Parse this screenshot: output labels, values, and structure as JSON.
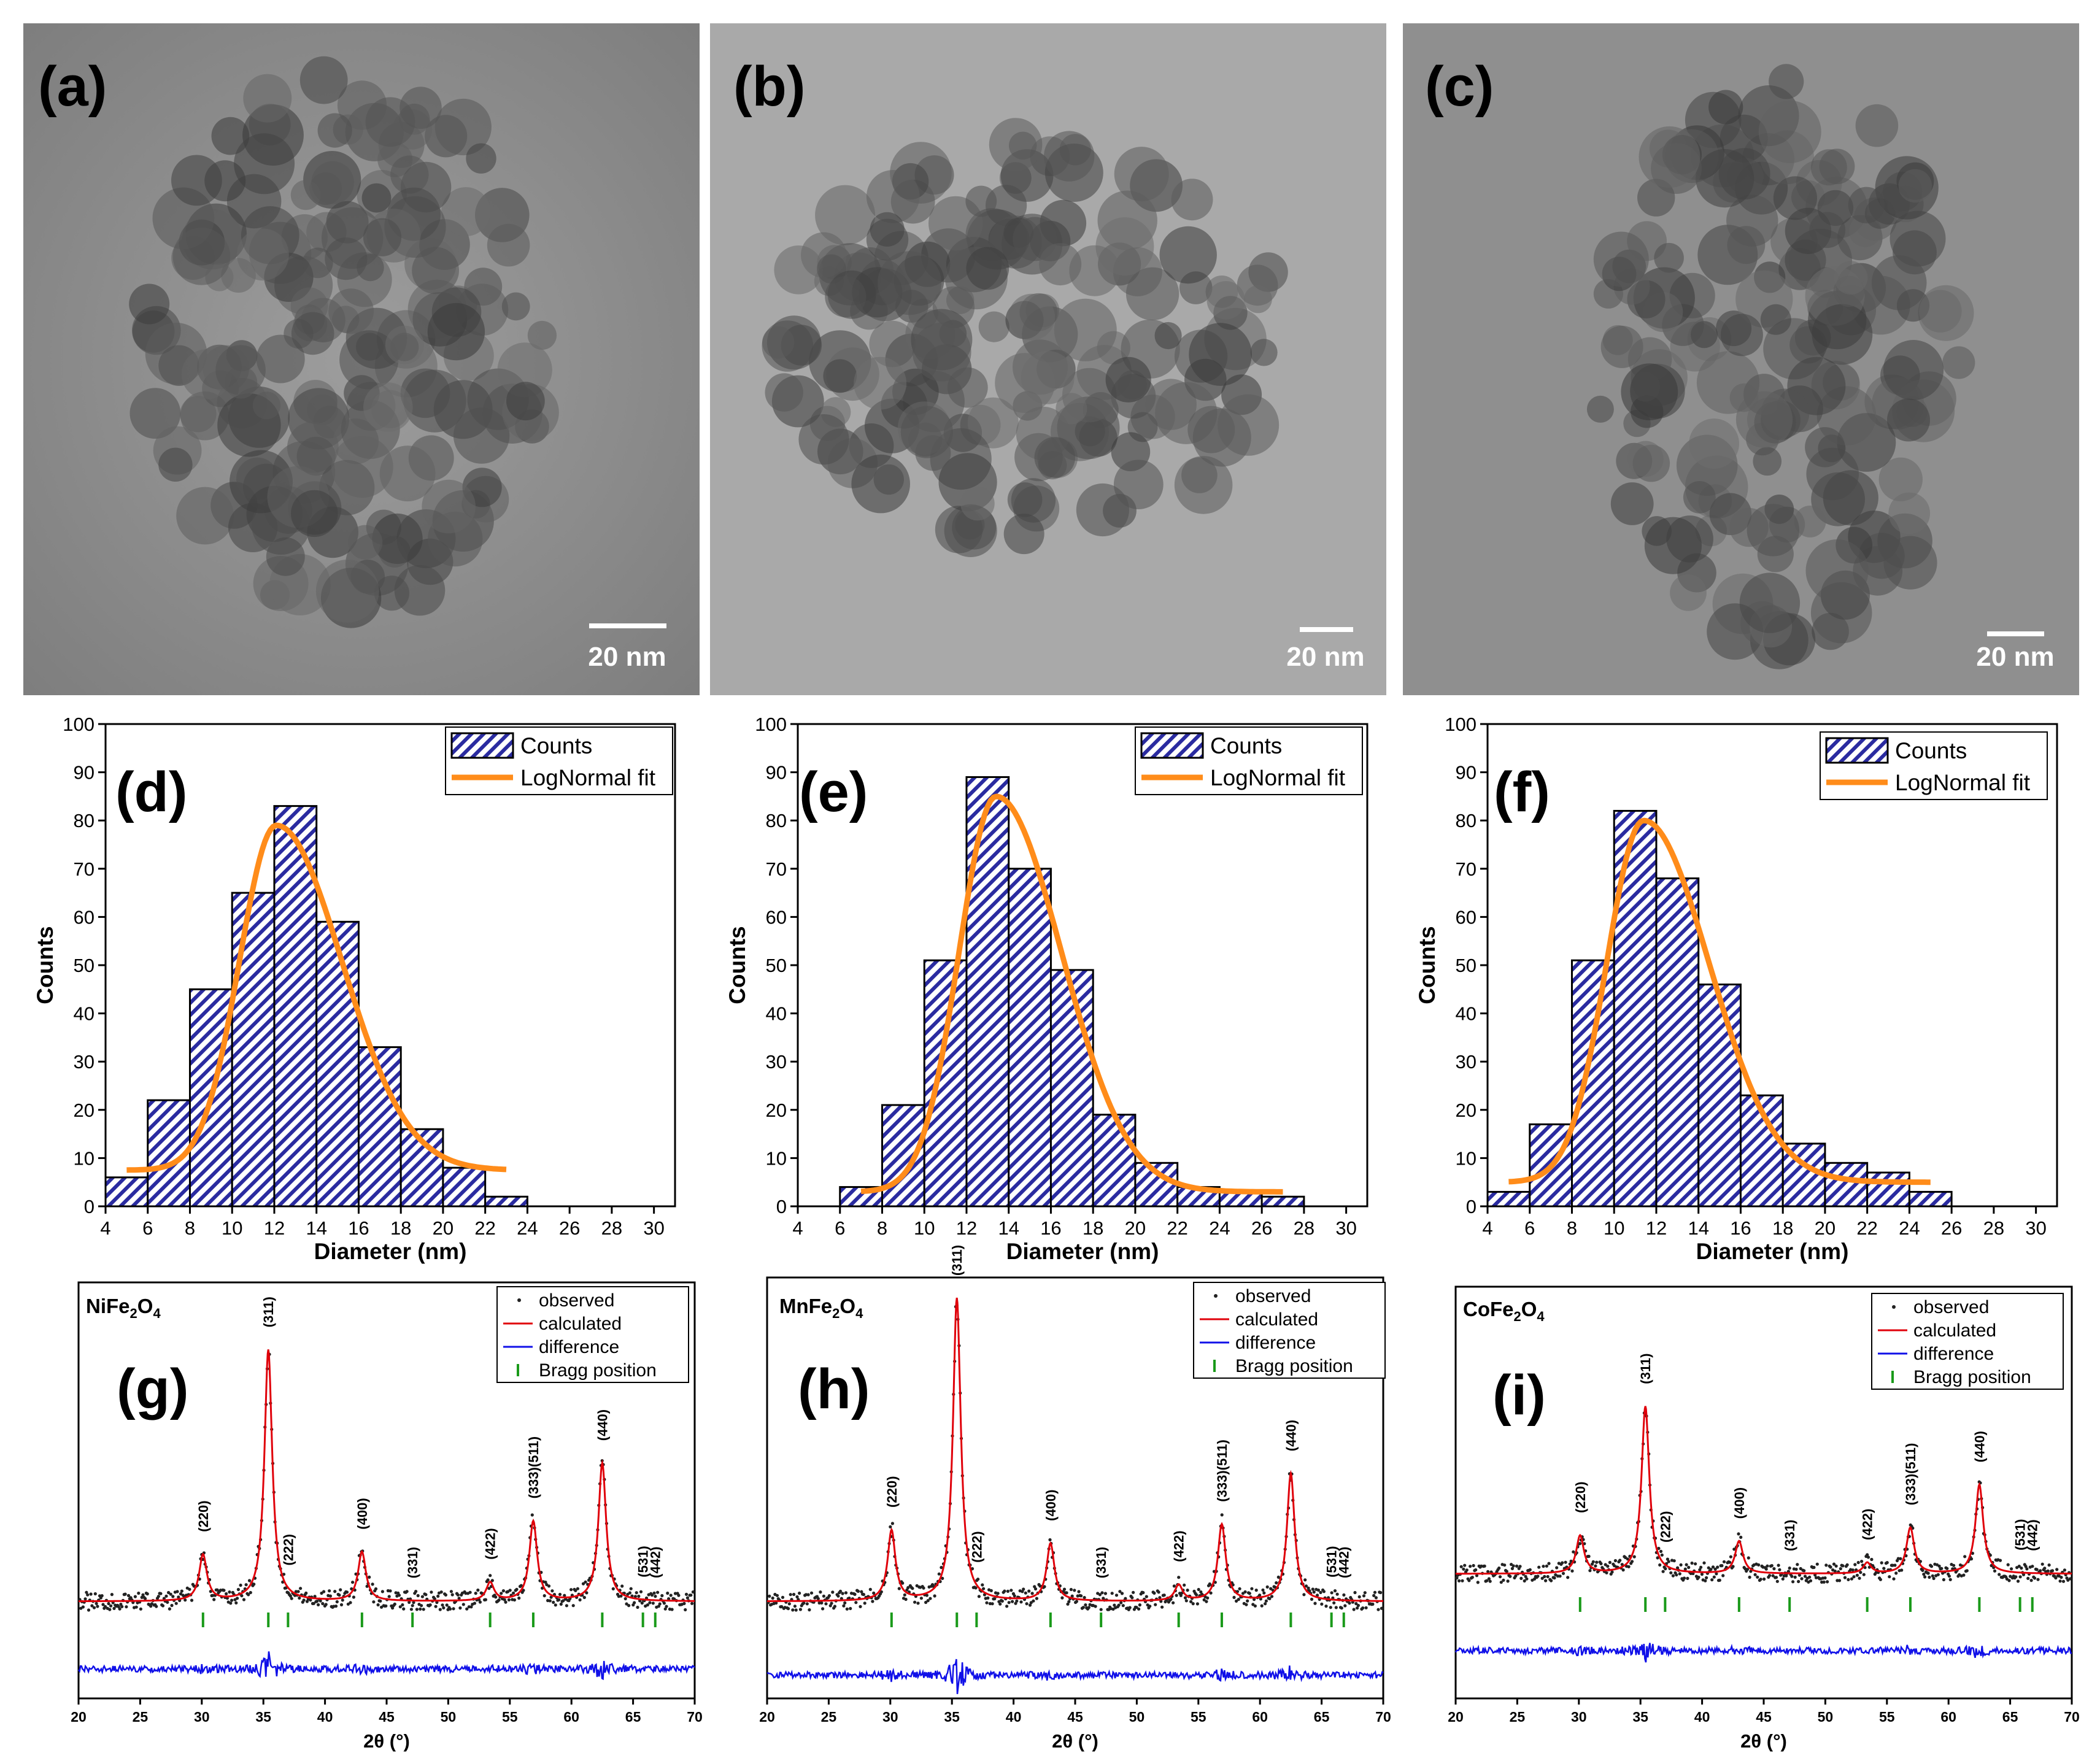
{
  "figure": {
    "tem_panels": [
      {
        "label": "(a)",
        "scale_bar": "20 nm"
      },
      {
        "label": "(b)",
        "scale_bar": "20 nm"
      },
      {
        "label": "(c)",
        "scale_bar": "20 nm"
      }
    ]
  },
  "chart_data": [
    {
      "type": "bar",
      "panel": "(d)",
      "xlabel": "Diameter (nm)",
      "ylabel": "Counts",
      "xlim": [
        4,
        31
      ],
      "ylim": [
        0,
        100
      ],
      "x_ticks": [
        4,
        6,
        8,
        10,
        12,
        14,
        16,
        18,
        20,
        22,
        24,
        26,
        28,
        30
      ],
      "y_ticks": [
        0,
        10,
        20,
        30,
        40,
        50,
        60,
        70,
        80,
        90,
        100
      ],
      "bin_width": 2,
      "bin_centers": [
        5,
        7,
        9,
        11,
        13,
        15,
        17,
        19,
        21,
        23
      ],
      "values": [
        6,
        22,
        45,
        65,
        83,
        59,
        33,
        16,
        8,
        2
      ],
      "fit": {
        "name": "LogNormal fit",
        "x_range": [
          5,
          23
        ],
        "peak_x": 12.1,
        "peak_y": 79,
        "tail_y": 7.5
      },
      "legend": [
        "Counts",
        "LogNormal fit"
      ]
    },
    {
      "type": "bar",
      "panel": "(e)",
      "xlabel": "Diameter (nm)",
      "ylabel": "Counts",
      "xlim": [
        4,
        31
      ],
      "ylim": [
        0,
        100
      ],
      "x_ticks": [
        4,
        6,
        8,
        10,
        12,
        14,
        16,
        18,
        20,
        22,
        24,
        26,
        28,
        30
      ],
      "y_ticks": [
        0,
        10,
        20,
        30,
        40,
        50,
        60,
        70,
        80,
        90,
        100
      ],
      "bin_width": 2,
      "bin_centers": [
        7,
        9,
        11,
        13,
        15,
        17,
        19,
        21,
        23,
        25,
        27
      ],
      "values": [
        4,
        21,
        51,
        89,
        70,
        49,
        19,
        9,
        4,
        3,
        2
      ],
      "fit": {
        "name": "LogNormal fit",
        "x_range": [
          7,
          27
        ],
        "peak_x": 13.4,
        "peak_y": 85,
        "tail_y": 3
      },
      "legend": [
        "Counts",
        "LogNormal fit"
      ]
    },
    {
      "type": "bar",
      "panel": "(f)",
      "xlabel": "Diameter (nm)",
      "ylabel": "Counts",
      "xlim": [
        4,
        31
      ],
      "ylim": [
        0,
        100
      ],
      "x_ticks": [
        4,
        6,
        8,
        10,
        12,
        14,
        16,
        18,
        20,
        22,
        24,
        26,
        28,
        30
      ],
      "y_ticks": [
        0,
        10,
        20,
        30,
        40,
        50,
        60,
        70,
        80,
        90,
        100
      ],
      "bin_width": 2,
      "bin_centers": [
        5,
        7,
        9,
        11,
        13,
        15,
        17,
        19,
        21,
        23,
        25
      ],
      "values": [
        3,
        17,
        51,
        82,
        68,
        46,
        23,
        13,
        9,
        7,
        3
      ],
      "fit": {
        "name": "LogNormal fit",
        "x_range": [
          5,
          25
        ],
        "peak_x": 11.4,
        "peak_y": 80,
        "tail_y": 5
      },
      "legend": [
        "Counts",
        "LogNormal fit"
      ]
    },
    {
      "type": "line",
      "panel": "(g)",
      "compound": "NiFe",
      "compound_sub1": "2",
      "compound_mid": "O",
      "compound_sub2": "4",
      "xlabel": "2θ (°)",
      "xlim": [
        20,
        70
      ],
      "x_ticks": [
        20,
        25,
        30,
        35,
        40,
        45,
        50,
        55,
        60,
        65,
        70
      ],
      "series": [
        "observed",
        "calculated",
        "difference",
        "Bragg position"
      ],
      "baseline": 0.1,
      "peaks": [
        {
          "hkl": "(220)",
          "pos": 30.1,
          "h": 0.15
        },
        {
          "hkl": "(311)",
          "pos": 35.4,
          "h": 0.82
        },
        {
          "hkl": "(222)",
          "pos": 37.0,
          "h": 0.0
        },
        {
          "hkl": "(400)",
          "pos": 43.0,
          "h": 0.16
        },
        {
          "hkl": "(331)",
          "pos": 47.1,
          "h": 0.0
        },
        {
          "hkl": "(422)",
          "pos": 53.4,
          "h": 0.06
        },
        {
          "hkl": "(333)(511)",
          "pos": 56.9,
          "h": 0.26
        },
        {
          "hkl": "(440)",
          "pos": 62.5,
          "h": 0.45
        },
        {
          "hkl": "(531)",
          "pos": 65.8,
          "h": 0.0
        },
        {
          "hkl": "(442)",
          "pos": 66.8,
          "h": 0.0
        }
      ]
    },
    {
      "type": "line",
      "panel": "(h)",
      "compound": "MnFe",
      "compound_sub1": "2",
      "compound_mid": "O",
      "compound_sub2": "4",
      "xlabel": "2θ (°)",
      "xlim": [
        20,
        70
      ],
      "x_ticks": [
        20,
        25,
        30,
        35,
        40,
        45,
        50,
        55,
        60,
        65,
        70
      ],
      "series": [
        "observed",
        "calculated",
        "difference",
        "Bragg position"
      ],
      "baseline": 0.05,
      "peaks": [
        {
          "hkl": "(220)",
          "pos": 30.1,
          "h": 0.22
        },
        {
          "hkl": "(311)",
          "pos": 35.4,
          "h": 0.95
        },
        {
          "hkl": "(222)",
          "pos": 37.0,
          "h": 0.0
        },
        {
          "hkl": "(400)",
          "pos": 43.0,
          "h": 0.18
        },
        {
          "hkl": "(331)",
          "pos": 47.1,
          "h": 0.0
        },
        {
          "hkl": "(422)",
          "pos": 53.4,
          "h": 0.05
        },
        {
          "hkl": "(333)(511)",
          "pos": 56.9,
          "h": 0.24
        },
        {
          "hkl": "(440)",
          "pos": 62.5,
          "h": 0.4
        },
        {
          "hkl": "(531)",
          "pos": 65.8,
          "h": 0.0
        },
        {
          "hkl": "(442)",
          "pos": 66.8,
          "h": 0.0
        }
      ]
    },
    {
      "type": "line",
      "panel": "(i)",
      "compound": "CoFe",
      "compound_sub1": "2",
      "compound_mid": "O",
      "compound_sub2": "4",
      "xlabel": "2θ (°)",
      "xlim": [
        20,
        70
      ],
      "x_ticks": [
        20,
        25,
        30,
        35,
        40,
        45,
        50,
        55,
        60,
        65,
        70
      ],
      "series": [
        "observed",
        "calculated",
        "difference",
        "Bragg position"
      ],
      "baseline": 0.14,
      "peaks": [
        {
          "hkl": "(220)",
          "pos": 30.1,
          "h": 0.14
        },
        {
          "hkl": "(311)",
          "pos": 35.4,
          "h": 0.62
        },
        {
          "hkl": "(222)",
          "pos": 37.0,
          "h": 0.0
        },
        {
          "hkl": "(400)",
          "pos": 43.0,
          "h": 0.12
        },
        {
          "hkl": "(331)",
          "pos": 47.1,
          "h": 0.0
        },
        {
          "hkl": "(422)",
          "pos": 53.4,
          "h": 0.04
        },
        {
          "hkl": "(333)(511)",
          "pos": 56.9,
          "h": 0.17
        },
        {
          "hkl": "(440)",
          "pos": 62.5,
          "h": 0.33
        },
        {
          "hkl": "(531)",
          "pos": 65.8,
          "h": 0.0
        },
        {
          "hkl": "(442)",
          "pos": 66.8,
          "h": 0.0
        }
      ]
    }
  ]
}
